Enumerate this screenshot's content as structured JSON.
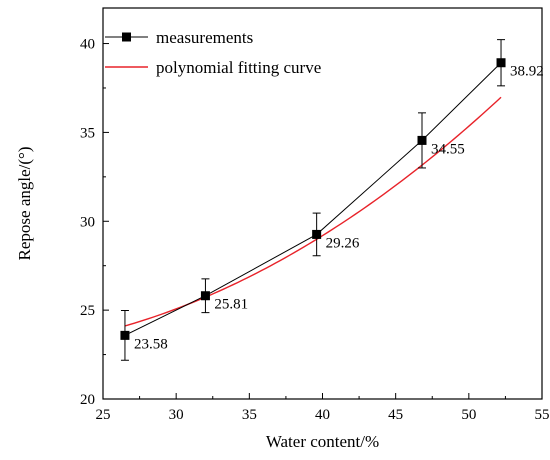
{
  "chart_data": {
    "type": "line",
    "title": "",
    "xlabel": "Water content/%",
    "ylabel": "Repose angle/(°)",
    "xlim": [
      25,
      55
    ],
    "ylim": [
      20,
      42
    ],
    "xticks": [
      25,
      30,
      35,
      40,
      45,
      50,
      55
    ],
    "yticks": [
      20,
      25,
      30,
      35,
      40
    ],
    "grid": false,
    "legend_position": "top-left",
    "series": [
      {
        "name": "measurements",
        "kind": "line-marker",
        "color": "#000000",
        "marker": "square",
        "x": [
          26.5,
          32.0,
          39.6,
          46.8,
          52.2
        ],
        "y": [
          23.58,
          25.81,
          29.26,
          34.55,
          38.92
        ],
        "error": [
          1.4,
          0.95,
          1.2,
          1.55,
          1.3
        ],
        "labels": [
          "23.58",
          "25.81",
          "29.26",
          "34.55",
          "38.92"
        ]
      },
      {
        "name": "polynomial fitting curve",
        "kind": "fit",
        "color": "#e8232a",
        "coefficients": [
          24.9154,
          -0.30007,
          0.010175
        ]
      }
    ]
  }
}
